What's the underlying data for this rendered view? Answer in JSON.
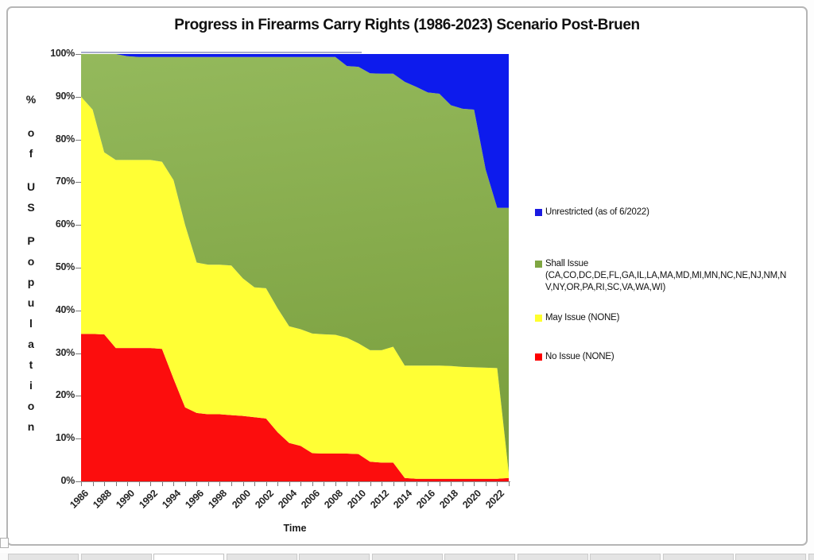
{
  "chart_data": {
    "type": "area",
    "stacked": true,
    "title": "Progress in Firearms Carry Rights (1986-2023) Scenario Post-Bruen",
    "xlabel": "Time",
    "ylabel": "% of US Population",
    "ylim": [
      0,
      100
    ],
    "xlim": [
      1986,
      2023
    ],
    "grid": false,
    "legend_position": "right",
    "y_tick_labels": [
      "0%",
      "10%",
      "20%",
      "30%",
      "40%",
      "50%",
      "60%",
      "70%",
      "80%",
      "90%",
      "100%"
    ],
    "x_tick_labels": [
      "1986",
      "1988",
      "1990",
      "1992",
      "1994",
      "1996",
      "1998",
      "2000",
      "2002",
      "2004",
      "2006",
      "2008",
      "2010",
      "2012",
      "2014",
      "2016",
      "2018",
      "2020",
      "2022"
    ],
    "x": [
      1986,
      1987,
      1988,
      1989,
      1990,
      1991,
      1992,
      1993,
      1994,
      1995,
      1996,
      1997,
      1998,
      1999,
      2000,
      2001,
      2002,
      2003,
      2004,
      2005,
      2006,
      2007,
      2008,
      2009,
      2010,
      2011,
      2012,
      2013,
      2014,
      2015,
      2016,
      2017,
      2018,
      2019,
      2020,
      2021,
      2022,
      2023
    ],
    "series": [
      {
        "id": "no-issue",
        "name": "No Issue (NONE)",
        "color": "#FC0D0D",
        "values": [
          34.5,
          34.5,
          34.4,
          31.2,
          31.2,
          31.2,
          31.2,
          31.0,
          24.0,
          17.3,
          16.0,
          15.7,
          15.7,
          15.5,
          15.3,
          15.0,
          14.7,
          11.5,
          9.0,
          8.3,
          6.6,
          6.5,
          6.5,
          6.5,
          6.4,
          4.6,
          4.4,
          4.4,
          0.8,
          0.6,
          0.6,
          0.6,
          0.6,
          0.6,
          0.6,
          0.6,
          0.6,
          0.8
        ]
      },
      {
        "id": "may-issue",
        "name": "May Issue (NONE)",
        "color": "#FFFF35",
        "values": [
          55.5,
          52.5,
          42.6,
          44.0,
          44.0,
          44.0,
          44.0,
          43.8,
          46.5,
          42.7,
          35.2,
          35.0,
          35.0,
          35.0,
          32.2,
          30.4,
          30.5,
          29.0,
          27.3,
          27.3,
          28.0,
          27.9,
          27.8,
          27.1,
          25.9,
          26.1,
          26.3,
          27.1,
          26.3,
          26.5,
          26.5,
          26.5,
          26.4,
          26.2,
          26.1,
          26.0,
          25.9,
          1.2
        ]
      },
      {
        "id": "shall-issue",
        "name": "Shall Issue (CA,CO,DC,DE,FL,GA,IL,LA,MA,MD,MI,MN,NC,NE,NJ,NM,NV,NY,OR,PA,RI,SC,VA,WA,WI)",
        "color": "#86AC4A",
        "gradient": [
          "#94B95C",
          "#7A9F3E"
        ],
        "values": [
          10.0,
          13.0,
          23.0,
          24.8,
          24.3,
          24.1,
          24.1,
          24.5,
          28.8,
          39.3,
          48.1,
          48.6,
          48.6,
          48.8,
          51.8,
          53.9,
          54.1,
          58.8,
          63.0,
          63.7,
          64.7,
          64.9,
          65.0,
          63.6,
          64.7,
          64.8,
          64.7,
          63.9,
          66.4,
          65.2,
          63.9,
          63.6,
          61.0,
          60.4,
          60.3,
          46.4,
          37.5,
          62.0
        ]
      },
      {
        "id": "unrestricted",
        "name": "Unrestricted (as of 6/2022)",
        "color": "#0D1BED",
        "values": [
          0,
          0,
          0,
          0,
          0.5,
          0.7,
          0.7,
          0.7,
          0.7,
          0.7,
          0.7,
          0.7,
          0.7,
          0.7,
          0.7,
          0.7,
          0.7,
          0.7,
          0.7,
          0.7,
          0.7,
          0.7,
          0.7,
          2.8,
          3.0,
          4.5,
          4.6,
          4.6,
          6.5,
          7.7,
          9.0,
          9.3,
          12.0,
          12.8,
          13.0,
          27.0,
          36.0,
          36.0
        ]
      }
    ],
    "legend_items": [
      {
        "swatch_color": "#1A1AE1",
        "lines": [
          "Unrestricted (as of 6/2022)"
        ]
      },
      {
        "swatch_color": "#7FA642",
        "lines": [
          "Shall Issue",
          "(CA,CO,DC,DE,FL,GA,IL,LA,MA,MD,MI,MN,NC,NE,NJ,NM,N",
          "V,NY,OR,PA,RI,SC,VA,WA,WI)"
        ]
      },
      {
        "swatch_color": "#FFFF2E",
        "lines": [
          "May Issue (NONE)"
        ]
      },
      {
        "swatch_color": "#FE0000",
        "lines": [
          "No Issue (NONE)"
        ]
      }
    ]
  },
  "window": {
    "sheet_tabs": {
      "count": 12,
      "active_index": 2
    }
  }
}
